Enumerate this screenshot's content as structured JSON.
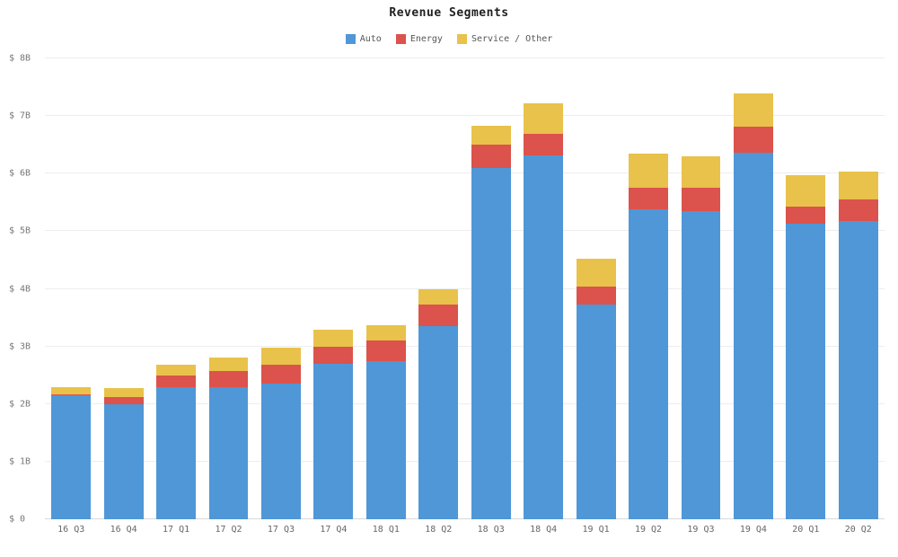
{
  "chart_data": {
    "type": "bar",
    "stacked": true,
    "title": "Revenue Segments",
    "xlabel": "",
    "ylabel": "",
    "ylim": [
      0,
      8
    ],
    "y_ticks": [
      "$ 0",
      "$ 1B",
      "$ 2B",
      "$ 3B",
      "$ 4B",
      "$ 5B",
      "$ 6B",
      "$ 7B",
      "$ 8B"
    ],
    "grid": "horizontal",
    "legend_position": "top",
    "categories": [
      "16 Q3",
      "16 Q4",
      "17 Q1",
      "17 Q2",
      "17 Q3",
      "17 Q4",
      "18 Q1",
      "18 Q2",
      "18 Q3",
      "18 Q4",
      "19 Q1",
      "19 Q2",
      "19 Q3",
      "19 Q4",
      "20 Q1",
      "20 Q2"
    ],
    "series": [
      {
        "name": "Auto",
        "color": "#4f97d7",
        "values": [
          2.15,
          1.99,
          2.29,
          2.29,
          2.36,
          2.7,
          2.74,
          3.36,
          6.1,
          6.32,
          3.72,
          5.38,
          5.35,
          6.37,
          5.13,
          5.18
        ]
      },
      {
        "name": "Energy",
        "color": "#dc524c",
        "values": [
          0.02,
          0.13,
          0.21,
          0.29,
          0.32,
          0.3,
          0.37,
          0.37,
          0.4,
          0.37,
          0.32,
          0.37,
          0.4,
          0.44,
          0.29,
          0.37
        ]
      },
      {
        "name": "Service / Other",
        "color": "#e8c24a",
        "values": [
          0.13,
          0.16,
          0.19,
          0.22,
          0.3,
          0.29,
          0.26,
          0.27,
          0.33,
          0.53,
          0.49,
          0.6,
          0.55,
          0.58,
          0.56,
          0.49
        ]
      }
    ]
  }
}
